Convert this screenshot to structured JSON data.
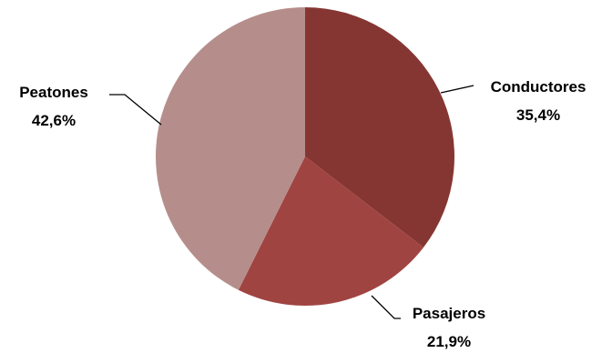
{
  "chart_data": {
    "type": "pie",
    "title": "",
    "categories": [
      "Conductores",
      "Pasajeros",
      "Peatones"
    ],
    "values": [
      35.4,
      21.9,
      42.6
    ],
    "value_labels": [
      "35,4%",
      "21,9%",
      "42,6%"
    ],
    "colors": [
      "#863632",
      "#A04442",
      "#B58E8B"
    ],
    "start_angle": "12 o'clock",
    "direction": "clockwise",
    "legend": "none"
  }
}
